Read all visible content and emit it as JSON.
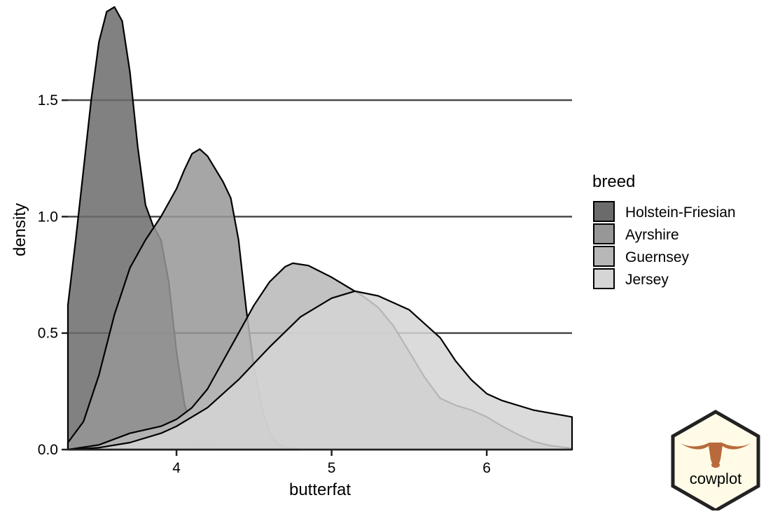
{
  "chart_data": {
    "type": "area",
    "subtype": "density",
    "xlabel": "butterfat",
    "ylabel": "density",
    "xlim": [
      3.3,
      6.55
    ],
    "ylim": [
      0,
      1.9
    ],
    "x_ticks": [
      4,
      5,
      6
    ],
    "x_tick_labels": [
      "4",
      "5",
      "6"
    ],
    "y_ticks": [
      0.0,
      0.5,
      1.0,
      1.5
    ],
    "y_tick_labels": [
      "0.0",
      "0.5",
      "1.0",
      "1.5"
    ],
    "grid": "horizontal",
    "legend": {
      "title": "breed",
      "position": "right"
    },
    "series": [
      {
        "name": "Holstein-Friesian",
        "color": "#6b6b6b",
        "points": [
          [
            3.3,
            0.62
          ],
          [
            3.35,
            0.9
          ],
          [
            3.4,
            1.2
          ],
          [
            3.45,
            1.5
          ],
          [
            3.5,
            1.75
          ],
          [
            3.55,
            1.88
          ],
          [
            3.6,
            1.9
          ],
          [
            3.65,
            1.84
          ],
          [
            3.7,
            1.62
          ],
          [
            3.75,
            1.3
          ],
          [
            3.8,
            1.05
          ],
          [
            3.85,
            0.96
          ],
          [
            3.9,
            0.9
          ],
          [
            3.95,
            0.72
          ],
          [
            4.0,
            0.42
          ],
          [
            4.05,
            0.2
          ],
          [
            4.1,
            0.08
          ],
          [
            4.15,
            0.03
          ],
          [
            4.2,
            0.012
          ],
          [
            4.25,
            0.004
          ],
          [
            4.3,
            0.0
          ]
        ]
      },
      {
        "name": "Ayrshire",
        "color": "#979797",
        "points": [
          [
            3.3,
            0.03
          ],
          [
            3.4,
            0.12
          ],
          [
            3.5,
            0.32
          ],
          [
            3.6,
            0.58
          ],
          [
            3.7,
            0.78
          ],
          [
            3.8,
            0.9
          ],
          [
            3.9,
            1.0
          ],
          [
            4.0,
            1.12
          ],
          [
            4.05,
            1.2
          ],
          [
            4.1,
            1.27
          ],
          [
            4.15,
            1.29
          ],
          [
            4.2,
            1.26
          ],
          [
            4.3,
            1.15
          ],
          [
            4.35,
            1.08
          ],
          [
            4.4,
            0.9
          ],
          [
            4.45,
            0.6
          ],
          [
            4.5,
            0.35
          ],
          [
            4.55,
            0.18
          ],
          [
            4.6,
            0.07
          ],
          [
            4.65,
            0.025
          ],
          [
            4.7,
            0.008
          ],
          [
            4.8,
            0.0
          ]
        ]
      },
      {
        "name": "Guernsey",
        "color": "#b7b7b7",
        "points": [
          [
            3.3,
            0.0
          ],
          [
            3.5,
            0.02
          ],
          [
            3.7,
            0.07
          ],
          [
            3.9,
            0.1
          ],
          [
            4.0,
            0.13
          ],
          [
            4.1,
            0.18
          ],
          [
            4.2,
            0.26
          ],
          [
            4.3,
            0.38
          ],
          [
            4.4,
            0.5
          ],
          [
            4.5,
            0.62
          ],
          [
            4.6,
            0.72
          ],
          [
            4.7,
            0.785
          ],
          [
            4.75,
            0.8
          ],
          [
            4.85,
            0.79
          ],
          [
            5.0,
            0.74
          ],
          [
            5.2,
            0.66
          ],
          [
            5.3,
            0.61
          ],
          [
            5.4,
            0.53
          ],
          [
            5.5,
            0.42
          ],
          [
            5.6,
            0.31
          ],
          [
            5.7,
            0.22
          ],
          [
            5.8,
            0.19
          ],
          [
            5.9,
            0.17
          ],
          [
            6.0,
            0.14
          ],
          [
            6.1,
            0.1
          ],
          [
            6.2,
            0.065
          ],
          [
            6.3,
            0.035
          ],
          [
            6.4,
            0.018
          ],
          [
            6.55,
            0.005
          ]
        ]
      },
      {
        "name": "Jersey",
        "color": "#d5d5d5",
        "points": [
          [
            3.3,
            0.0
          ],
          [
            3.5,
            0.008
          ],
          [
            3.7,
            0.03
          ],
          [
            3.9,
            0.07
          ],
          [
            4.0,
            0.1
          ],
          [
            4.2,
            0.18
          ],
          [
            4.4,
            0.3
          ],
          [
            4.6,
            0.44
          ],
          [
            4.8,
            0.57
          ],
          [
            5.0,
            0.65
          ],
          [
            5.15,
            0.68
          ],
          [
            5.3,
            0.66
          ],
          [
            5.5,
            0.6
          ],
          [
            5.7,
            0.48
          ],
          [
            5.8,
            0.38
          ],
          [
            5.9,
            0.3
          ],
          [
            6.0,
            0.24
          ],
          [
            6.1,
            0.21
          ],
          [
            6.3,
            0.17
          ],
          [
            6.55,
            0.14
          ]
        ]
      }
    ]
  },
  "logo": {
    "text": "cowplot",
    "fill": "#fffbe6",
    "stroke": "#222222",
    "accent": "#b86a3c"
  }
}
